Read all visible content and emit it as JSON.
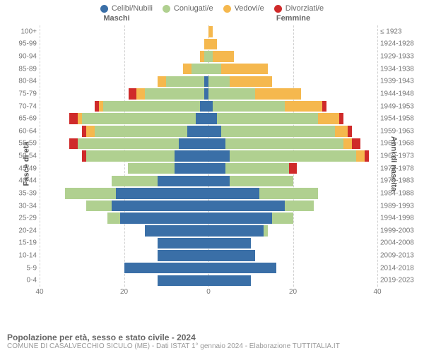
{
  "legend": [
    {
      "label": "Celibi/Nubili",
      "color": "#3a6fa7"
    },
    {
      "label": "Coniugati/e",
      "color": "#b0d090"
    },
    {
      "label": "Vedovi/e",
      "color": "#f5b84e"
    },
    {
      "label": "Divorziati/e",
      "color": "#cf2a2a"
    }
  ],
  "headers": {
    "maschi": "Maschi",
    "femmine": "Femmine"
  },
  "axis_labels": {
    "left": "Fasce di età",
    "right": "Anni di nascita"
  },
  "xlim": 40,
  "x_ticks_left": [
    40,
    20,
    0
  ],
  "x_ticks_right": [
    0,
    20,
    40
  ],
  "rows": [
    {
      "age": "100+",
      "birth": "≤ 1923",
      "m": [
        0,
        0,
        0,
        0
      ],
      "f": [
        0,
        0,
        1,
        0
      ]
    },
    {
      "age": "95-99",
      "birth": "1924-1928",
      "m": [
        0,
        0,
        1,
        0
      ],
      "f": [
        0,
        0,
        2,
        0
      ]
    },
    {
      "age": "90-94",
      "birth": "1929-1933",
      "m": [
        0,
        1,
        1,
        0
      ],
      "f": [
        0,
        1,
        5,
        0
      ]
    },
    {
      "age": "85-89",
      "birth": "1934-1938",
      "m": [
        0,
        4,
        2,
        0
      ],
      "f": [
        0,
        3,
        11,
        0
      ]
    },
    {
      "age": "80-84",
      "birth": "1939-1943",
      "m": [
        1,
        9,
        2,
        0
      ],
      "f": [
        0,
        5,
        10,
        0
      ]
    },
    {
      "age": "75-79",
      "birth": "1944-1948",
      "m": [
        1,
        14,
        2,
        2
      ],
      "f": [
        0,
        11,
        11,
        0
      ]
    },
    {
      "age": "70-74",
      "birth": "1949-1953",
      "m": [
        2,
        23,
        1,
        1
      ],
      "f": [
        1,
        17,
        9,
        1
      ]
    },
    {
      "age": "65-69",
      "birth": "1954-1958",
      "m": [
        3,
        27,
        1,
        2
      ],
      "f": [
        2,
        24,
        5,
        1
      ]
    },
    {
      "age": "60-64",
      "birth": "1959-1963",
      "m": [
        5,
        22,
        2,
        1
      ],
      "f": [
        3,
        27,
        3,
        1
      ]
    },
    {
      "age": "55-59",
      "birth": "1964-1968",
      "m": [
        7,
        24,
        0,
        2
      ],
      "f": [
        4,
        28,
        2,
        2
      ]
    },
    {
      "age": "50-54",
      "birth": "1969-1973",
      "m": [
        8,
        21,
        0,
        1
      ],
      "f": [
        5,
        30,
        2,
        1
      ]
    },
    {
      "age": "45-49",
      "birth": "1974-1978",
      "m": [
        8,
        11,
        0,
        0
      ],
      "f": [
        4,
        15,
        0,
        2
      ]
    },
    {
      "age": "40-44",
      "birth": "1979-1983",
      "m": [
        12,
        11,
        0,
        0
      ],
      "f": [
        5,
        15,
        0,
        0
      ]
    },
    {
      "age": "35-39",
      "birth": "1984-1988",
      "m": [
        22,
        12,
        0,
        0
      ],
      "f": [
        12,
        14,
        0,
        0
      ]
    },
    {
      "age": "30-34",
      "birth": "1989-1993",
      "m": [
        23,
        6,
        0,
        0
      ],
      "f": [
        18,
        7,
        0,
        0
      ]
    },
    {
      "age": "25-29",
      "birth": "1994-1998",
      "m": [
        21,
        3,
        0,
        0
      ],
      "f": [
        15,
        5,
        0,
        0
      ]
    },
    {
      "age": "20-24",
      "birth": "1999-2003",
      "m": [
        15,
        0,
        0,
        0
      ],
      "f": [
        13,
        1,
        0,
        0
      ]
    },
    {
      "age": "15-19",
      "birth": "2004-2008",
      "m": [
        12,
        0,
        0,
        0
      ],
      "f": [
        10,
        0,
        0,
        0
      ]
    },
    {
      "age": "10-14",
      "birth": "2009-2013",
      "m": [
        12,
        0,
        0,
        0
      ],
      "f": [
        11,
        0,
        0,
        0
      ]
    },
    {
      "age": "5-9",
      "birth": "2014-2018",
      "m": [
        20,
        0,
        0,
        0
      ],
      "f": [
        16,
        0,
        0,
        0
      ]
    },
    {
      "age": "0-4",
      "birth": "2019-2023",
      "m": [
        12,
        0,
        0,
        0
      ],
      "f": [
        10,
        0,
        0,
        0
      ]
    }
  ],
  "segment_colors": [
    "#3a6fa7",
    "#b0d090",
    "#f5b84e",
    "#cf2a2a"
  ],
  "background_color": "#ffffff",
  "grid_color": "#d0d0d0",
  "footer": {
    "title": "Popolazione per età, sesso e stato civile - 2024",
    "subtitle": "COMUNE DI CASALVECCHIO SICULO (ME) - Dati ISTAT 1° gennaio 2024 - Elaborazione TUTTITALIA.IT"
  }
}
